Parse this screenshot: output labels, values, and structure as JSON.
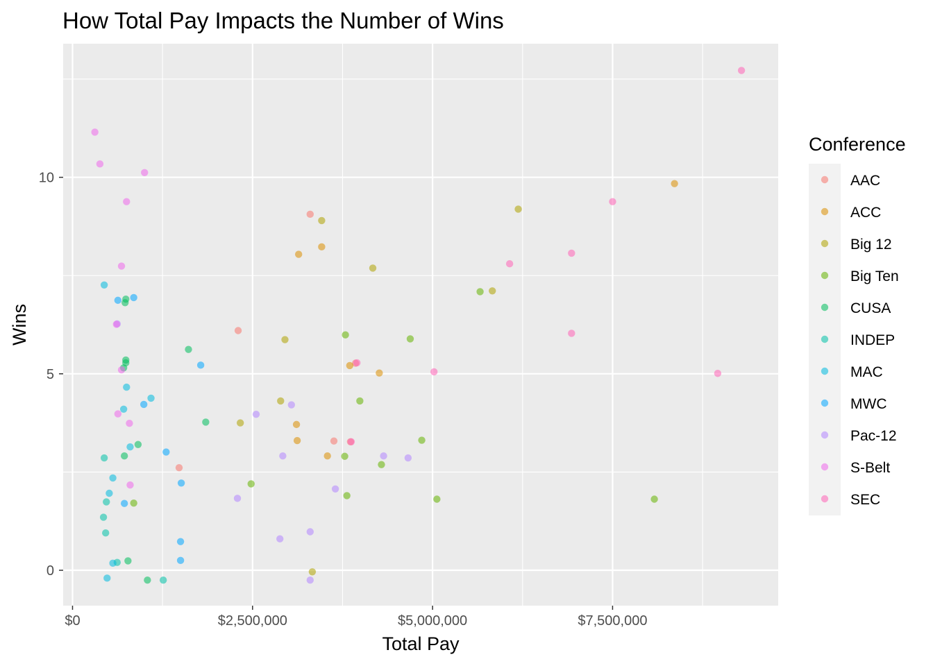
{
  "chart_data": {
    "type": "scatter",
    "title": "How Total Pay Impacts the Number of Wins",
    "xlabel": "Total Pay",
    "ylabel": "Wins",
    "xlim": [
      -130000,
      9800000
    ],
    "ylim": [
      -0.9,
      13.4
    ],
    "x_ticks": [
      {
        "value": 0,
        "label": "$0"
      },
      {
        "value": 2500000,
        "label": "$2,500,000"
      },
      {
        "value": 5000000,
        "label": "$5,000,000"
      },
      {
        "value": 7500000,
        "label": "$7,500,000"
      }
    ],
    "y_ticks": [
      {
        "value": 0,
        "label": "0"
      },
      {
        "value": 5,
        "label": "5"
      },
      {
        "value": 10,
        "label": "10"
      }
    ],
    "grid": true,
    "background": "#ebebeb",
    "legend": {
      "title": "Conference",
      "position": "right"
    },
    "series": [
      {
        "name": "AAC",
        "color": "#F8766D",
        "points": [
          [
            3300000,
            9.06
          ],
          [
            2300000,
            6.1
          ],
          [
            1480000,
            2.61
          ],
          [
            3630000,
            3.29
          ],
          [
            3930000,
            5.27
          ],
          [
            3860000,
            3.27
          ]
        ]
      },
      {
        "name": "ACC",
        "color": "#DB8E00",
        "points": [
          [
            8360000,
            9.84
          ],
          [
            3460000,
            8.23
          ],
          [
            3140000,
            8.04
          ],
          [
            3850000,
            5.21
          ],
          [
            4260000,
            5.02
          ],
          [
            3110000,
            3.71
          ],
          [
            3120000,
            3.3
          ],
          [
            3540000,
            2.91
          ]
        ]
      },
      {
        "name": "Big 12",
        "color": "#AEA200",
        "points": [
          [
            6190000,
            9.19
          ],
          [
            3460000,
            8.9
          ],
          [
            4170000,
            7.69
          ],
          [
            5830000,
            7.11
          ],
          [
            2950000,
            5.87
          ],
          [
            2890000,
            4.31
          ],
          [
            2330000,
            3.75
          ],
          [
            3330000,
            -0.04
          ]
        ]
      },
      {
        "name": "Big Ten",
        "color": "#64B200",
        "points": [
          [
            5660000,
            7.09
          ],
          [
            3790000,
            5.99
          ],
          [
            4690000,
            5.89
          ],
          [
            3990000,
            4.31
          ],
          [
            4850000,
            3.31
          ],
          [
            3780000,
            2.9
          ],
          [
            4290000,
            2.69
          ],
          [
            2480000,
            2.2
          ],
          [
            3810000,
            1.9
          ],
          [
            5060000,
            1.81
          ],
          [
            8080000,
            1.81
          ],
          [
            850000,
            1.71
          ]
        ]
      },
      {
        "name": "CUSA",
        "color": "#00BD5C",
        "points": [
          [
            740000,
            6.9
          ],
          [
            730000,
            6.81
          ],
          [
            1610000,
            5.62
          ],
          [
            740000,
            5.35
          ],
          [
            740000,
            5.28
          ],
          [
            710000,
            5.15
          ],
          [
            1850000,
            3.77
          ],
          [
            910000,
            3.2
          ],
          [
            720000,
            2.91
          ],
          [
            770000,
            0.24
          ],
          [
            1040000,
            -0.25
          ]
        ]
      },
      {
        "name": "INDEP",
        "color": "#00C1A7",
        "points": [
          [
            440000,
            2.86
          ],
          [
            470000,
            1.74
          ],
          [
            430000,
            1.35
          ],
          [
            460000,
            0.95
          ],
          [
            620000,
            0.2
          ],
          [
            1260000,
            -0.25
          ]
        ]
      },
      {
        "name": "MAC",
        "color": "#00BADE",
        "points": [
          [
            440000,
            7.26
          ],
          [
            750000,
            4.66
          ],
          [
            1090000,
            4.38
          ],
          [
            710000,
            4.1
          ],
          [
            800000,
            3.14
          ],
          [
            560000,
            2.35
          ],
          [
            510000,
            1.96
          ],
          [
            560000,
            0.18
          ],
          [
            480000,
            -0.2
          ]
        ]
      },
      {
        "name": "MWC",
        "color": "#00A6FF",
        "points": [
          [
            850000,
            6.94
          ],
          [
            630000,
            6.87
          ],
          [
            1780000,
            5.22
          ],
          [
            990000,
            4.22
          ],
          [
            1300000,
            3.01
          ],
          [
            1510000,
            2.22
          ],
          [
            720000,
            1.7
          ],
          [
            1500000,
            0.73
          ],
          [
            1500000,
            0.25
          ]
        ]
      },
      {
        "name": "Pac-12",
        "color": "#B385FF",
        "points": [
          [
            620000,
            6.27
          ],
          [
            2550000,
            3.97
          ],
          [
            3040000,
            4.21
          ],
          [
            2920000,
            2.91
          ],
          [
            4320000,
            2.91
          ],
          [
            4660000,
            2.86
          ],
          [
            3650000,
            2.07
          ],
          [
            2290000,
            1.83
          ],
          [
            2880000,
            0.8
          ],
          [
            3300000,
            0.98
          ],
          [
            3300000,
            -0.25
          ]
        ]
      },
      {
        "name": "S-Belt",
        "color": "#EF67EB",
        "points": [
          [
            310000,
            11.15
          ],
          [
            380000,
            10.34
          ],
          [
            1000000,
            10.12
          ],
          [
            750000,
            9.38
          ],
          [
            680000,
            7.74
          ],
          [
            610000,
            6.26
          ],
          [
            680000,
            5.1
          ],
          [
            630000,
            3.98
          ],
          [
            790000,
            3.74
          ],
          [
            800000,
            2.17
          ]
        ]
      },
      {
        "name": "SEC",
        "color": "#FF63B6",
        "points": [
          [
            9290000,
            12.72
          ],
          [
            7500000,
            9.38
          ],
          [
            6930000,
            8.07
          ],
          [
            6070000,
            7.8
          ],
          [
            6930000,
            6.03
          ],
          [
            5020000,
            5.05
          ],
          [
            8960000,
            5.01
          ],
          [
            3950000,
            5.28
          ],
          [
            3870000,
            3.27
          ]
        ]
      }
    ]
  }
}
